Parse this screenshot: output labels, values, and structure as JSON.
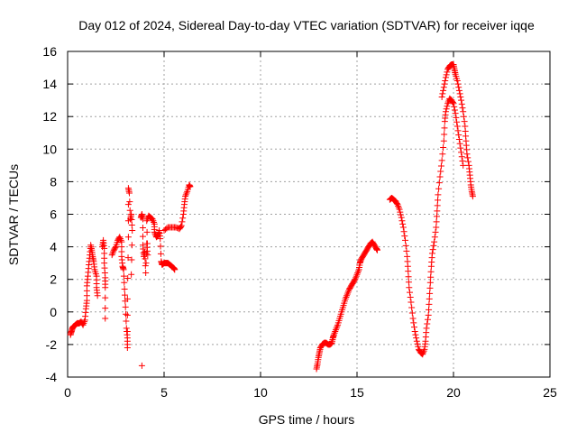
{
  "chart_data": {
    "type": "scatter",
    "title": "Day 012 of 2024, Sidereal Day-to-day VTEC variation (SDTVAR) for receiver iqqe",
    "xlabel": "GPS time / hours",
    "ylabel": "SDTVAR / TECUs",
    "xlim": [
      0,
      25
    ],
    "ylim": [
      -4,
      16
    ],
    "xticks": [
      0,
      5,
      10,
      15,
      20,
      25
    ],
    "yticks": [
      -4,
      -2,
      0,
      2,
      4,
      6,
      8,
      10,
      12,
      14,
      16
    ],
    "xtick_labels": [
      "0",
      "5",
      "10",
      "15",
      "20",
      "25"
    ],
    "ytick_labels": [
      "-4",
      "-2",
      "0",
      "2",
      "4",
      "6",
      "8",
      "10",
      "12",
      "14",
      "16"
    ],
    "grid": true,
    "marker": "+",
    "color": "#ff0000",
    "series": [
      {
        "name": "iqqe",
        "points": [
          [
            0.15,
            -1.4
          ],
          [
            0.2,
            -1.2
          ],
          [
            0.25,
            -1.0
          ],
          [
            0.3,
            -0.9
          ],
          [
            0.4,
            -0.8
          ],
          [
            0.5,
            -0.7
          ],
          [
            0.6,
            -0.7
          ],
          [
            0.7,
            -0.6
          ],
          [
            0.8,
            -0.8
          ],
          [
            0.9,
            -0.5
          ],
          [
            0.95,
            0.2
          ],
          [
            1.0,
            0.7
          ],
          [
            1.0,
            1.6
          ],
          [
            1.05,
            2.2
          ],
          [
            1.1,
            2.9
          ],
          [
            1.15,
            3.5
          ],
          [
            1.2,
            4.1
          ],
          [
            1.25,
            3.8
          ],
          [
            1.3,
            3.4
          ],
          [
            1.35,
            3.1
          ],
          [
            1.4,
            2.6
          ],
          [
            1.5,
            2.2
          ],
          [
            1.5,
            1.5
          ],
          [
            1.55,
            1.0
          ],
          [
            1.8,
            4.0
          ],
          [
            1.85,
            4.4
          ],
          [
            1.9,
            3.9
          ],
          [
            1.9,
            3.0
          ],
          [
            1.95,
            2.1
          ],
          [
            1.95,
            1.5
          ],
          [
            1.95,
            -0.4
          ],
          [
            2.3,
            3.5
          ],
          [
            2.4,
            3.8
          ],
          [
            2.5,
            4.0
          ],
          [
            2.6,
            4.4
          ],
          [
            2.7,
            4.6
          ],
          [
            2.8,
            4.3
          ],
          [
            2.8,
            3.4
          ],
          [
            2.85,
            2.8
          ],
          [
            2.9,
            2.6
          ],
          [
            2.95,
            1.4
          ],
          [
            3.0,
            0.3
          ],
          [
            3.05,
            -1.0
          ],
          [
            3.1,
            -1.6
          ],
          [
            3.1,
            -2.2
          ],
          [
            3.1,
            0.8
          ],
          [
            3.15,
            4.6
          ],
          [
            3.15,
            7.6
          ],
          [
            3.2,
            7.3
          ],
          [
            3.25,
            5.7
          ],
          [
            3.3,
            6.0
          ],
          [
            3.35,
            5.0
          ],
          [
            3.3,
            2.3
          ],
          [
            3.8,
            5.8
          ],
          [
            3.85,
            6.0
          ],
          [
            3.9,
            5.7
          ],
          [
            3.9,
            4.1
          ],
          [
            3.95,
            3.4
          ],
          [
            4.0,
            3.7
          ],
          [
            4.05,
            2.4
          ],
          [
            4.1,
            4.2
          ],
          [
            4.15,
            3.5
          ],
          [
            4.1,
            5.6
          ],
          [
            4.2,
            5.9
          ],
          [
            4.3,
            5.8
          ],
          [
            4.4,
            5.7
          ],
          [
            4.5,
            5.4
          ],
          [
            4.5,
            4.9
          ],
          [
            4.6,
            4.6
          ],
          [
            4.7,
            4.7
          ],
          [
            4.75,
            5.0
          ],
          [
            4.8,
            4.5
          ],
          [
            4.85,
            3.1
          ],
          [
            4.9,
            2.9
          ],
          [
            5.0,
            3.0
          ],
          [
            5.1,
            3.0
          ],
          [
            5.2,
            3.0
          ],
          [
            5.3,
            2.9
          ],
          [
            5.4,
            2.8
          ],
          [
            5.5,
            2.7
          ],
          [
            5.55,
            2.6
          ],
          [
            5.0,
            5.0
          ],
          [
            5.2,
            5.2
          ],
          [
            5.4,
            5.2
          ],
          [
            5.6,
            5.2
          ],
          [
            5.8,
            5.1
          ],
          [
            5.9,
            5.3
          ],
          [
            6.0,
            6.0
          ],
          [
            6.05,
            6.6
          ],
          [
            6.1,
            7.1
          ],
          [
            6.2,
            7.4
          ],
          [
            6.3,
            7.8
          ],
          [
            6.35,
            7.7
          ],
          [
            3.85,
            -3.3
          ],
          [
            12.9,
            -3.5
          ],
          [
            12.95,
            -3.2
          ],
          [
            13.0,
            -2.8
          ],
          [
            13.05,
            -2.5
          ],
          [
            13.1,
            -2.2
          ],
          [
            13.2,
            -2.0
          ],
          [
            13.3,
            -1.9
          ],
          [
            13.4,
            -1.9
          ],
          [
            13.5,
            -2.0
          ],
          [
            13.6,
            -2.0
          ],
          [
            13.7,
            -1.9
          ],
          [
            13.75,
            -1.6
          ],
          [
            13.8,
            -1.4
          ],
          [
            13.9,
            -1.1
          ],
          [
            14.0,
            -0.8
          ],
          [
            14.1,
            -0.4
          ],
          [
            14.2,
            0.0
          ],
          [
            14.3,
            0.4
          ],
          [
            14.4,
            0.8
          ],
          [
            14.5,
            1.1
          ],
          [
            14.6,
            1.4
          ],
          [
            14.7,
            1.6
          ],
          [
            14.8,
            1.8
          ],
          [
            14.9,
            2.0
          ],
          [
            15.0,
            2.3
          ],
          [
            15.1,
            2.6
          ],
          [
            15.15,
            3.0
          ],
          [
            15.2,
            3.2
          ],
          [
            15.3,
            3.4
          ],
          [
            15.4,
            3.6
          ],
          [
            15.5,
            3.8
          ],
          [
            15.6,
            4.0
          ],
          [
            15.7,
            4.2
          ],
          [
            15.8,
            4.3
          ],
          [
            15.9,
            4.1
          ],
          [
            16.0,
            3.9
          ],
          [
            16.05,
            3.8
          ],
          [
            16.7,
            6.9
          ],
          [
            16.8,
            7.0
          ],
          [
            16.9,
            6.9
          ],
          [
            17.0,
            6.8
          ],
          [
            17.1,
            6.6
          ],
          [
            17.2,
            6.3
          ],
          [
            17.3,
            5.8
          ],
          [
            17.4,
            5.2
          ],
          [
            17.5,
            4.4
          ],
          [
            17.6,
            3.4
          ],
          [
            17.65,
            2.5
          ],
          [
            17.7,
            1.5
          ],
          [
            17.8,
            0.6
          ],
          [
            17.9,
            -0.4
          ],
          [
            18.0,
            -1.2
          ],
          [
            18.1,
            -1.8
          ],
          [
            18.2,
            -2.3
          ],
          [
            18.3,
            -2.5
          ],
          [
            18.4,
            -2.6
          ],
          [
            18.5,
            -2.3
          ],
          [
            18.55,
            -1.8
          ],
          [
            18.6,
            -1.0
          ],
          [
            18.7,
            -0.2
          ],
          [
            18.75,
            0.8
          ],
          [
            18.8,
            1.8
          ],
          [
            18.85,
            2.8
          ],
          [
            18.9,
            3.6
          ],
          [
            19.0,
            4.3
          ],
          [
            19.1,
            5.2
          ],
          [
            19.15,
            6.2
          ],
          [
            19.2,
            7.2
          ],
          [
            19.3,
            8.3
          ],
          [
            19.4,
            9.3
          ],
          [
            19.5,
            10.5
          ],
          [
            19.55,
            11.7
          ],
          [
            19.6,
            12.3
          ],
          [
            19.7,
            12.8
          ],
          [
            19.8,
            13.1
          ],
          [
            19.9,
            13.0
          ],
          [
            20.0,
            12.8
          ],
          [
            20.1,
            12.2
          ],
          [
            20.2,
            11.4
          ],
          [
            20.3,
            10.6
          ],
          [
            20.4,
            9.8
          ],
          [
            20.5,
            9.0
          ],
          [
            19.4,
            13.2
          ],
          [
            19.5,
            13.8
          ],
          [
            19.6,
            14.4
          ],
          [
            19.7,
            14.9
          ],
          [
            19.8,
            15.1
          ],
          [
            19.9,
            15.2
          ],
          [
            20.0,
            15.2
          ],
          [
            20.05,
            14.9
          ],
          [
            20.1,
            14.6
          ],
          [
            20.2,
            14.2
          ],
          [
            20.3,
            13.6
          ],
          [
            20.4,
            13.0
          ],
          [
            20.5,
            12.3
          ],
          [
            20.6,
            11.4
          ],
          [
            20.65,
            10.5
          ],
          [
            20.7,
            9.7
          ],
          [
            20.8,
            9.0
          ],
          [
            20.85,
            8.4
          ],
          [
            20.9,
            7.8
          ],
          [
            20.95,
            7.4
          ],
          [
            21.0,
            7.1
          ]
        ]
      }
    ]
  }
}
